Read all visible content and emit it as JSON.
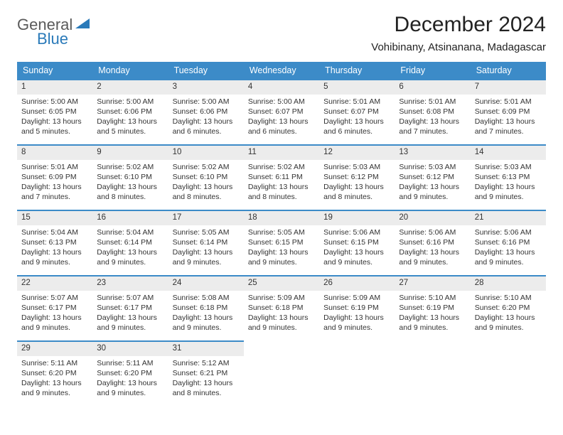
{
  "brand": {
    "word1": "General",
    "word2": "Blue"
  },
  "title": "December 2024",
  "location": "Vohibinany, Atsinanana, Madagascar",
  "colors": {
    "headerBg": "#3c8bc8",
    "dayBarBg": "#ececec",
    "text": "#333333",
    "brandGray": "#5a5a5a",
    "brandBlue": "#2a7ab9"
  },
  "weekdays": [
    "Sunday",
    "Monday",
    "Tuesday",
    "Wednesday",
    "Thursday",
    "Friday",
    "Saturday"
  ],
  "weeks": [
    [
      {
        "n": "1",
        "sr": "Sunrise: 5:00 AM",
        "ss": "Sunset: 6:05 PM",
        "d1": "Daylight: 13 hours",
        "d2": "and 5 minutes."
      },
      {
        "n": "2",
        "sr": "Sunrise: 5:00 AM",
        "ss": "Sunset: 6:06 PM",
        "d1": "Daylight: 13 hours",
        "d2": "and 5 minutes."
      },
      {
        "n": "3",
        "sr": "Sunrise: 5:00 AM",
        "ss": "Sunset: 6:06 PM",
        "d1": "Daylight: 13 hours",
        "d2": "and 6 minutes."
      },
      {
        "n": "4",
        "sr": "Sunrise: 5:00 AM",
        "ss": "Sunset: 6:07 PM",
        "d1": "Daylight: 13 hours",
        "d2": "and 6 minutes."
      },
      {
        "n": "5",
        "sr": "Sunrise: 5:01 AM",
        "ss": "Sunset: 6:07 PM",
        "d1": "Daylight: 13 hours",
        "d2": "and 6 minutes."
      },
      {
        "n": "6",
        "sr": "Sunrise: 5:01 AM",
        "ss": "Sunset: 6:08 PM",
        "d1": "Daylight: 13 hours",
        "d2": "and 7 minutes."
      },
      {
        "n": "7",
        "sr": "Sunrise: 5:01 AM",
        "ss": "Sunset: 6:09 PM",
        "d1": "Daylight: 13 hours",
        "d2": "and 7 minutes."
      }
    ],
    [
      {
        "n": "8",
        "sr": "Sunrise: 5:01 AM",
        "ss": "Sunset: 6:09 PM",
        "d1": "Daylight: 13 hours",
        "d2": "and 7 minutes."
      },
      {
        "n": "9",
        "sr": "Sunrise: 5:02 AM",
        "ss": "Sunset: 6:10 PM",
        "d1": "Daylight: 13 hours",
        "d2": "and 8 minutes."
      },
      {
        "n": "10",
        "sr": "Sunrise: 5:02 AM",
        "ss": "Sunset: 6:10 PM",
        "d1": "Daylight: 13 hours",
        "d2": "and 8 minutes."
      },
      {
        "n": "11",
        "sr": "Sunrise: 5:02 AM",
        "ss": "Sunset: 6:11 PM",
        "d1": "Daylight: 13 hours",
        "d2": "and 8 minutes."
      },
      {
        "n": "12",
        "sr": "Sunrise: 5:03 AM",
        "ss": "Sunset: 6:12 PM",
        "d1": "Daylight: 13 hours",
        "d2": "and 8 minutes."
      },
      {
        "n": "13",
        "sr": "Sunrise: 5:03 AM",
        "ss": "Sunset: 6:12 PM",
        "d1": "Daylight: 13 hours",
        "d2": "and 9 minutes."
      },
      {
        "n": "14",
        "sr": "Sunrise: 5:03 AM",
        "ss": "Sunset: 6:13 PM",
        "d1": "Daylight: 13 hours",
        "d2": "and 9 minutes."
      }
    ],
    [
      {
        "n": "15",
        "sr": "Sunrise: 5:04 AM",
        "ss": "Sunset: 6:13 PM",
        "d1": "Daylight: 13 hours",
        "d2": "and 9 minutes."
      },
      {
        "n": "16",
        "sr": "Sunrise: 5:04 AM",
        "ss": "Sunset: 6:14 PM",
        "d1": "Daylight: 13 hours",
        "d2": "and 9 minutes."
      },
      {
        "n": "17",
        "sr": "Sunrise: 5:05 AM",
        "ss": "Sunset: 6:14 PM",
        "d1": "Daylight: 13 hours",
        "d2": "and 9 minutes."
      },
      {
        "n": "18",
        "sr": "Sunrise: 5:05 AM",
        "ss": "Sunset: 6:15 PM",
        "d1": "Daylight: 13 hours",
        "d2": "and 9 minutes."
      },
      {
        "n": "19",
        "sr": "Sunrise: 5:06 AM",
        "ss": "Sunset: 6:15 PM",
        "d1": "Daylight: 13 hours",
        "d2": "and 9 minutes."
      },
      {
        "n": "20",
        "sr": "Sunrise: 5:06 AM",
        "ss": "Sunset: 6:16 PM",
        "d1": "Daylight: 13 hours",
        "d2": "and 9 minutes."
      },
      {
        "n": "21",
        "sr": "Sunrise: 5:06 AM",
        "ss": "Sunset: 6:16 PM",
        "d1": "Daylight: 13 hours",
        "d2": "and 9 minutes."
      }
    ],
    [
      {
        "n": "22",
        "sr": "Sunrise: 5:07 AM",
        "ss": "Sunset: 6:17 PM",
        "d1": "Daylight: 13 hours",
        "d2": "and 9 minutes."
      },
      {
        "n": "23",
        "sr": "Sunrise: 5:07 AM",
        "ss": "Sunset: 6:17 PM",
        "d1": "Daylight: 13 hours",
        "d2": "and 9 minutes."
      },
      {
        "n": "24",
        "sr": "Sunrise: 5:08 AM",
        "ss": "Sunset: 6:18 PM",
        "d1": "Daylight: 13 hours",
        "d2": "and 9 minutes."
      },
      {
        "n": "25",
        "sr": "Sunrise: 5:09 AM",
        "ss": "Sunset: 6:18 PM",
        "d1": "Daylight: 13 hours",
        "d2": "and 9 minutes."
      },
      {
        "n": "26",
        "sr": "Sunrise: 5:09 AM",
        "ss": "Sunset: 6:19 PM",
        "d1": "Daylight: 13 hours",
        "d2": "and 9 minutes."
      },
      {
        "n": "27",
        "sr": "Sunrise: 5:10 AM",
        "ss": "Sunset: 6:19 PM",
        "d1": "Daylight: 13 hours",
        "d2": "and 9 minutes."
      },
      {
        "n": "28",
        "sr": "Sunrise: 5:10 AM",
        "ss": "Sunset: 6:20 PM",
        "d1": "Daylight: 13 hours",
        "d2": "and 9 minutes."
      }
    ],
    [
      {
        "n": "29",
        "sr": "Sunrise: 5:11 AM",
        "ss": "Sunset: 6:20 PM",
        "d1": "Daylight: 13 hours",
        "d2": "and 9 minutes."
      },
      {
        "n": "30",
        "sr": "Sunrise: 5:11 AM",
        "ss": "Sunset: 6:20 PM",
        "d1": "Daylight: 13 hours",
        "d2": "and 9 minutes."
      },
      {
        "n": "31",
        "sr": "Sunrise: 5:12 AM",
        "ss": "Sunset: 6:21 PM",
        "d1": "Daylight: 13 hours",
        "d2": "and 8 minutes."
      },
      null,
      null,
      null,
      null
    ]
  ]
}
